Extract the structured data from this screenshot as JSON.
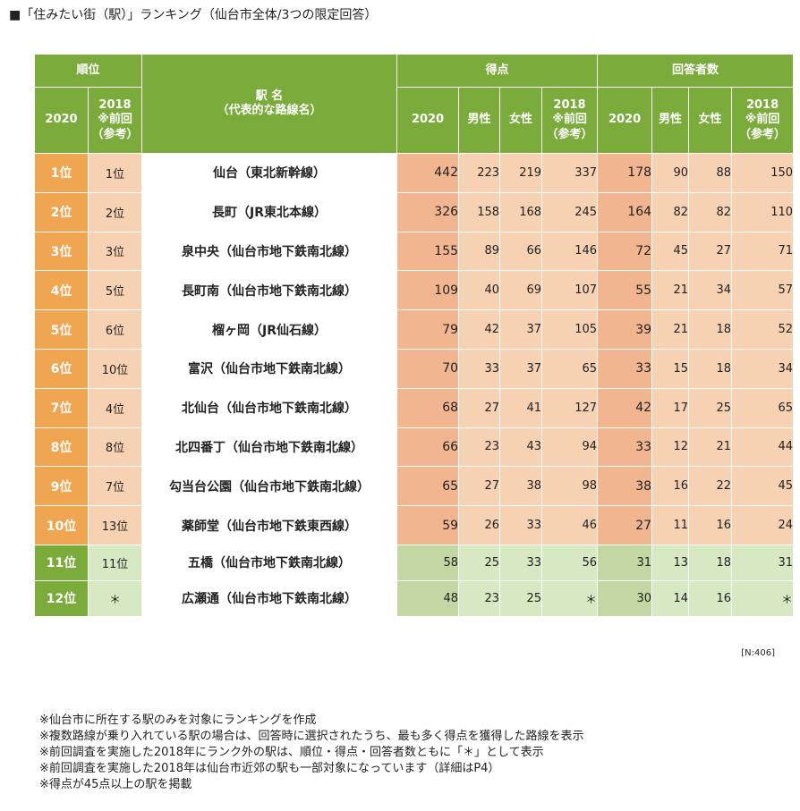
{
  "title": "■「住みたい街（駅）」ランキング（仙台市全体/3つの限定回答）",
  "headers": {
    "rank_group": "順位",
    "station_line1": "駅 名",
    "station_line2": "（代表的な路線名）",
    "score_group": "得点",
    "resp_group": "回答者数",
    "y2020": "2020",
    "prev_line1": "2018",
    "prev_line2": "※前回",
    "prev_line3": "（参考）",
    "male": "男性",
    "female": "女性"
  },
  "rows": [
    {
      "rank": "1位",
      "prev": "1位",
      "station": "仙台（東北新幹線）",
      "score": "442",
      "score_m": "223",
      "score_f": "219",
      "score_prev": "337",
      "resp": "178",
      "resp_m": "90",
      "resp_f": "88",
      "resp_prev": "150"
    },
    {
      "rank": "2位",
      "prev": "2位",
      "station": "長町（JR東北本線）",
      "score": "326",
      "score_m": "158",
      "score_f": "168",
      "score_prev": "245",
      "resp": "164",
      "resp_m": "82",
      "resp_f": "82",
      "resp_prev": "110"
    },
    {
      "rank": "3位",
      "prev": "3位",
      "station": "泉中央（仙台市地下鉄南北線）",
      "score": "155",
      "score_m": "89",
      "score_f": "66",
      "score_prev": "146",
      "resp": "72",
      "resp_m": "45",
      "resp_f": "27",
      "resp_prev": "71"
    },
    {
      "rank": "4位",
      "prev": "5位",
      "station": "長町南（仙台市地下鉄南北線）",
      "score": "109",
      "score_m": "40",
      "score_f": "69",
      "score_prev": "107",
      "resp": "55",
      "resp_m": "21",
      "resp_f": "34",
      "resp_prev": "57"
    },
    {
      "rank": "5位",
      "prev": "6位",
      "station": "榴ヶ岡（JR仙石線）",
      "score": "79",
      "score_m": "42",
      "score_f": "37",
      "score_prev": "105",
      "resp": "39",
      "resp_m": "21",
      "resp_f": "18",
      "resp_prev": "52"
    },
    {
      "rank": "6位",
      "prev": "10位",
      "station": "富沢（仙台市地下鉄南北線）",
      "score": "70",
      "score_m": "33",
      "score_f": "37",
      "score_prev": "65",
      "resp": "33",
      "resp_m": "15",
      "resp_f": "18",
      "resp_prev": "34"
    },
    {
      "rank": "7位",
      "prev": "4位",
      "station": "北仙台（仙台市地下鉄南北線）",
      "score": "68",
      "score_m": "27",
      "score_f": "41",
      "score_prev": "127",
      "resp": "42",
      "resp_m": "17",
      "resp_f": "25",
      "resp_prev": "65"
    },
    {
      "rank": "8位",
      "prev": "8位",
      "station": "北四番丁（仙台市地下鉄南北線）",
      "score": "66",
      "score_m": "23",
      "score_f": "43",
      "score_prev": "94",
      "resp": "33",
      "resp_m": "12",
      "resp_f": "21",
      "resp_prev": "44"
    },
    {
      "rank": "9位",
      "prev": "7位",
      "station": "勾当台公園（仙台市地下鉄南北線）",
      "score": "65",
      "score_m": "27",
      "score_f": "38",
      "score_prev": "98",
      "resp": "38",
      "resp_m": "16",
      "resp_f": "22",
      "resp_prev": "45"
    },
    {
      "rank": "10位",
      "prev": "13位",
      "station": "薬師堂（仙台市地下鉄東西線）",
      "score": "59",
      "score_m": "26",
      "score_f": "33",
      "score_prev": "46",
      "resp": "27",
      "resp_m": "11",
      "resp_f": "16",
      "resp_prev": "24"
    },
    {
      "rank": "11位",
      "prev": "11位",
      "station": "五橋（仙台市地下鉄南北線）",
      "score": "58",
      "score_m": "25",
      "score_f": "33",
      "score_prev": "56",
      "resp": "31",
      "resp_m": "13",
      "resp_f": "18",
      "resp_prev": "31"
    },
    {
      "rank": "12位",
      "prev": "＊",
      "station": "広瀬通（仙台市地下鉄南北線）",
      "score": "48",
      "score_m": "23",
      "score_f": "25",
      "score_prev": "＊",
      "resp": "30",
      "resp_m": "14",
      "resp_f": "16",
      "resp_prev": "＊"
    }
  ],
  "sample_size": "[N:406]",
  "notes": [
    "※仙台市に所在する駅のみを対象にランキングを作成",
    "※複数路線が乗り入れている駅の場合は、回答時に選択されたうち、最も多く得点を獲得した路線を表示",
    "※前回調査を実施した2018年にランク外の駅は、順位・得点・回答者数ともに「＊」として表示",
    "※前回調査を実施した2018年は仙台市近郊の駅も一部対象になっています（詳細はP4）",
    "※得点が45点以上の駅を掲載"
  ],
  "colors": {
    "header_green": "#7bab3b",
    "rank_orange": "#f0a550",
    "score_orange": "#f1b690",
    "light_orange": "#f6d2b3",
    "light_green": "#d6e9c2",
    "mid_green": "#c3d7a2"
  }
}
